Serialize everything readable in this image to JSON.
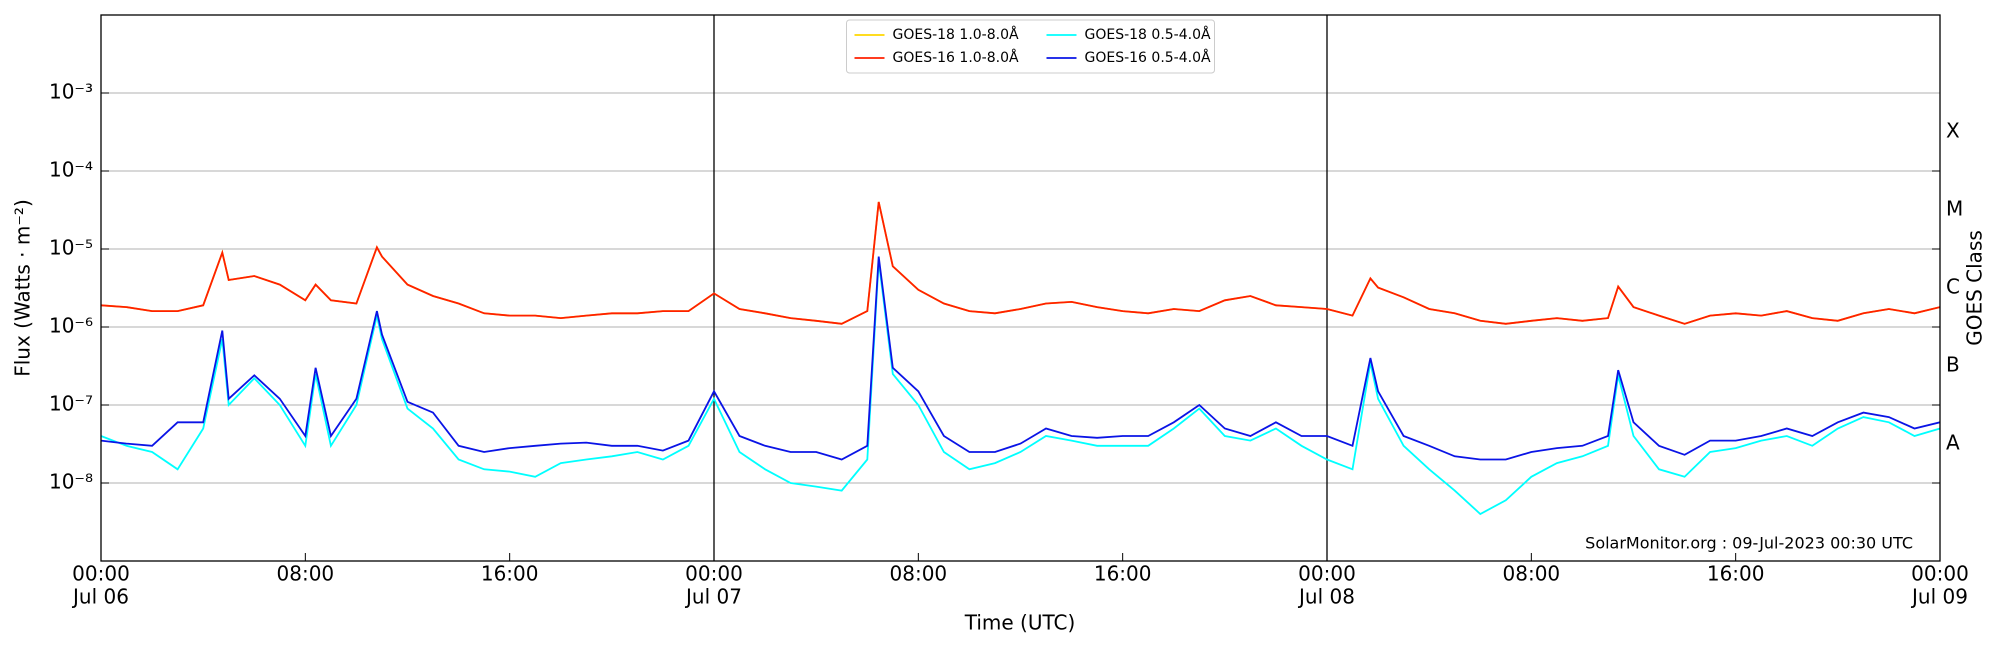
{
  "chart_data": {
    "type": "line",
    "yscale": "log",
    "grid": "y",
    "legend": "upper center",
    "xlabel": "Time (UTC)",
    "ylabel": "Flux (Watts · m⁻²)",
    "y2label": "GOES Class",
    "annotation": "SolarMonitor.org : 09-Jul-2023 00:30 UTC",
    "xlim": [
      0,
      72
    ],
    "xticks": [
      {
        "value": 0,
        "label": "00:00",
        "date": "Jul 06"
      },
      {
        "value": 8,
        "label": "08:00"
      },
      {
        "value": 16,
        "label": "16:00"
      },
      {
        "value": 24,
        "label": "00:00",
        "date": "Jul 07"
      },
      {
        "value": 32,
        "label": "08:00"
      },
      {
        "value": 40,
        "label": "16:00"
      },
      {
        "value": 48,
        "label": "00:00",
        "date": "Jul 08"
      },
      {
        "value": 56,
        "label": "08:00"
      },
      {
        "value": 64,
        "label": "16:00"
      },
      {
        "value": 72,
        "label": "00:00",
        "date": "Jul 09"
      }
    ],
    "ylim": [
      1e-09,
      0.01
    ],
    "yticks": [
      {
        "value": 1e-08,
        "label": "10⁻⁸"
      },
      {
        "value": 1e-07,
        "label": "10⁻⁷"
      },
      {
        "value": 1e-06,
        "label": "10⁻⁶"
      },
      {
        "value": 1e-05,
        "label": "10⁻⁵"
      },
      {
        "value": 0.0001,
        "label": "10⁻⁴"
      },
      {
        "value": 0.001,
        "label": "10⁻³"
      }
    ],
    "y2lim": [
      1e-09,
      0.01
    ],
    "y2ticks": [
      {
        "value": 1e-08,
        "label": "A"
      },
      {
        "value": 1e-07,
        "label": "B"
      },
      {
        "value": 1e-06,
        "label": "C"
      },
      {
        "value": 1e-05,
        "label": "M"
      },
      {
        "value": 0.0001,
        "label": "X"
      }
    ],
    "x": [
      0,
      1,
      2,
      3,
      4,
      4.75,
      5,
      6,
      7,
      8,
      8.4,
      9,
      10,
      10.8,
      11,
      12,
      13,
      14,
      15,
      16,
      17,
      18,
      19,
      20,
      21,
      22,
      23,
      24,
      25,
      26,
      27,
      28,
      29,
      30,
      30.45,
      31,
      32,
      33,
      34,
      35,
      36,
      37,
      38,
      39,
      40,
      41,
      42,
      43,
      44,
      45,
      46,
      47,
      48,
      49,
      49.7,
      50,
      51,
      52,
      53,
      54,
      55,
      56,
      57,
      58,
      59,
      59.4,
      60,
      61,
      62,
      63,
      64,
      65,
      66,
      67,
      68,
      69,
      70,
      71,
      72
    ],
    "series": [
      {
        "name": "GOES-18 1.0-8.0Å",
        "color": "#ffd700",
        "values": [
          1.9e-06,
          1.8e-06,
          1.6e-06,
          1.6e-06,
          1.9e-06,
          9e-06,
          4e-06,
          4.5e-06,
          3.5e-06,
          2.2e-06,
          3.5e-06,
          2.2e-06,
          2e-06,
          1.05e-05,
          8e-06,
          3.5e-06,
          2.5e-06,
          2e-06,
          1.5e-06,
          1.4e-06,
          1.4e-06,
          1.3e-06,
          1.4e-06,
          1.5e-06,
          1.5e-06,
          1.6e-06,
          1.6e-06,
          2.7e-06,
          1.7e-06,
          1.5e-06,
          1.3e-06,
          1.2e-06,
          1.1e-06,
          1.6e-06,
          4e-05,
          6e-06,
          3e-06,
          2e-06,
          1.6e-06,
          1.5e-06,
          1.7e-06,
          2e-06,
          2.1e-06,
          1.8e-06,
          1.6e-06,
          1.5e-06,
          1.7e-06,
          1.6e-06,
          2.2e-06,
          2.5e-06,
          1.9e-06,
          1.8e-06,
          1.7e-06,
          1.4e-06,
          4.2e-06,
          3.2e-06,
          2.4e-06,
          1.7e-06,
          1.5e-06,
          1.2e-06,
          1.1e-06,
          1.2e-06,
          1.3e-06,
          1.2e-06,
          1.3e-06,
          3.3e-06,
          1.8e-06,
          1.4e-06,
          1.1e-06,
          1.4e-06,
          1.5e-06,
          1.4e-06,
          1.6e-06,
          1.3e-06,
          1.2e-06,
          1.5e-06,
          1.7e-06,
          1.5e-06,
          1.8e-06
        ]
      },
      {
        "name": "GOES-16 1.0-8.0Å",
        "color": "#ff2000",
        "values": [
          1.9e-06,
          1.8e-06,
          1.6e-06,
          1.6e-06,
          1.9e-06,
          9e-06,
          4e-06,
          4.5e-06,
          3.5e-06,
          2.2e-06,
          3.5e-06,
          2.2e-06,
          2e-06,
          1.05e-05,
          8e-06,
          3.5e-06,
          2.5e-06,
          2e-06,
          1.5e-06,
          1.4e-06,
          1.4e-06,
          1.3e-06,
          1.4e-06,
          1.5e-06,
          1.5e-06,
          1.6e-06,
          1.6e-06,
          2.7e-06,
          1.7e-06,
          1.5e-06,
          1.3e-06,
          1.2e-06,
          1.1e-06,
          1.6e-06,
          4e-05,
          6e-06,
          3e-06,
          2e-06,
          1.6e-06,
          1.5e-06,
          1.7e-06,
          2e-06,
          2.1e-06,
          1.8e-06,
          1.6e-06,
          1.5e-06,
          1.7e-06,
          1.6e-06,
          2.2e-06,
          2.5e-06,
          1.9e-06,
          1.8e-06,
          1.7e-06,
          1.4e-06,
          4.2e-06,
          3.2e-06,
          2.4e-06,
          1.7e-06,
          1.5e-06,
          1.2e-06,
          1.1e-06,
          1.2e-06,
          1.3e-06,
          1.2e-06,
          1.3e-06,
          3.3e-06,
          1.8e-06,
          1.4e-06,
          1.1e-06,
          1.4e-06,
          1.5e-06,
          1.4e-06,
          1.6e-06,
          1.3e-06,
          1.2e-06,
          1.5e-06,
          1.7e-06,
          1.5e-06,
          1.8e-06
        ]
      },
      {
        "name": "GOES-18 0.5-4.0Å",
        "color": "#00ffff",
        "values": [
          4e-08,
          3e-08,
          2.5e-08,
          1.5e-08,
          5e-08,
          7e-07,
          1e-07,
          2.2e-07,
          1e-07,
          3e-08,
          2.5e-07,
          3e-08,
          1e-07,
          1.4e-06,
          7e-07,
          9e-08,
          5e-08,
          2e-08,
          1.5e-08,
          1.4e-08,
          1.2e-08,
          1.8e-08,
          2e-08,
          2.2e-08,
          2.5e-08,
          2e-08,
          3e-08,
          1.2e-07,
          2.5e-08,
          1.5e-08,
          1e-08,
          9e-09,
          8e-09,
          2e-08,
          7e-06,
          2.5e-07,
          1e-07,
          2.5e-08,
          1.5e-08,
          1.8e-08,
          2.5e-08,
          4e-08,
          3.5e-08,
          3e-08,
          3e-08,
          3e-08,
          5e-08,
          9e-08,
          4e-08,
          3.5e-08,
          5e-08,
          3e-08,
          2e-08,
          1.5e-08,
          3.5e-07,
          1.2e-07,
          3e-08,
          1.5e-08,
          8e-09,
          4e-09,
          6e-09,
          1.2e-08,
          1.8e-08,
          2.2e-08,
          3e-08,
          2.4e-07,
          4e-08,
          1.5e-08,
          1.2e-08,
          2.5e-08,
          2.8e-08,
          3.5e-08,
          4e-08,
          3e-08,
          5e-08,
          7e-08,
          6e-08,
          4e-08,
          5e-08
        ]
      },
      {
        "name": "GOES-16 0.5-4.0Å",
        "color": "#0a14e6",
        "values": [
          3.5e-08,
          3.2e-08,
          3e-08,
          6e-08,
          6e-08,
          9e-07,
          1.2e-07,
          2.4e-07,
          1.2e-07,
          4e-08,
          3e-07,
          4e-08,
          1.2e-07,
          1.6e-06,
          8e-07,
          1.1e-07,
          8e-08,
          3e-08,
          2.5e-08,
          2.8e-08,
          3e-08,
          3.2e-08,
          3.3e-08,
          3e-08,
          3e-08,
          2.6e-08,
          3.5e-08,
          1.5e-07,
          4e-08,
          3e-08,
          2.5e-08,
          2.5e-08,
          2e-08,
          3e-08,
          8e-06,
          3e-07,
          1.5e-07,
          4e-08,
          2.5e-08,
          2.5e-08,
          3.2e-08,
          5e-08,
          4e-08,
          3.8e-08,
          4e-08,
          4e-08,
          6e-08,
          1e-07,
          5e-08,
          4e-08,
          6e-08,
          4e-08,
          4e-08,
          3e-08,
          4e-07,
          1.5e-07,
          4e-08,
          3e-08,
          2.2e-08,
          2e-08,
          2e-08,
          2.5e-08,
          2.8e-08,
          3e-08,
          4e-08,
          2.8e-07,
          6e-08,
          3e-08,
          2.3e-08,
          3.5e-08,
          3.5e-08,
          4e-08,
          5e-08,
          4e-08,
          6e-08,
          8e-08,
          7e-08,
          5e-08,
          6e-08
        ]
      }
    ]
  }
}
